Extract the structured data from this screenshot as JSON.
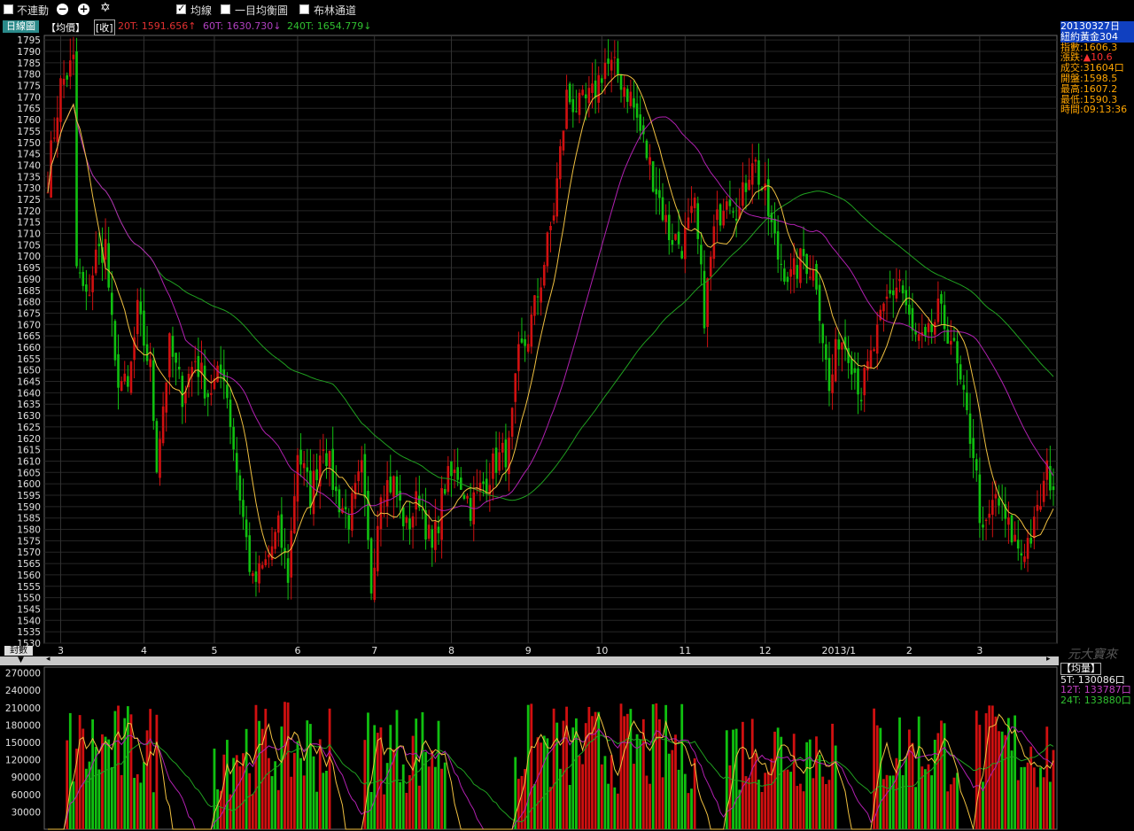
{
  "toolbar": {
    "unlink_label": "不連動",
    "ma_label": "均線",
    "ichimoku_label": "一目均衡圖",
    "bollinger_label": "布林通道",
    "ma_checked": true
  },
  "legend": {
    "tab_label": "日線圖",
    "price_label": "【均價】",
    "close_box": "[收]",
    "ma20": "20T: 1591.656↑",
    "ma60": "60T: 1630.730↓",
    "ma240": "240T: 1654.779↓"
  },
  "info_panel": {
    "date": "20130327日",
    "product": "紐約黃金304",
    "rows": [
      {
        "label": "指數",
        "value": ":1606.3"
      },
      {
        "label": "漲跌",
        "value": ":▲10.6"
      },
      {
        "label": "成交",
        "value": ":31604口"
      },
      {
        "label": "開盤",
        "value": ":1598.5"
      },
      {
        "label": "最高",
        "value": ":1607.2"
      },
      {
        "label": "最低",
        "value": ":1590.3"
      },
      {
        "label": "時間",
        "value": ":09:13:36"
      }
    ]
  },
  "volume_panel": {
    "title": "【均量】",
    "ma5": "5T: 130086口",
    "ma12": "12T: 133787口",
    "ma24": "24T: 133880口"
  },
  "bottom_left_label": "封數",
  "watermark": "元大寶來",
  "colors": {
    "up": "#d01010",
    "down": "#10c010",
    "ma20": "#f0c040",
    "ma60": "#b020b0",
    "ma240": "#20a020",
    "grid": "#3a3a3a",
    "axis_text": "#e0e0e0"
  },
  "chart_data": [
    {
      "type": "candlestick",
      "title": "",
      "ylim": [
        1530,
        1797
      ],
      "yticks": [
        1530,
        1535,
        1540,
        1545,
        1550,
        1555,
        1560,
        1565,
        1570,
        1575,
        1580,
        1585,
        1590,
        1595,
        1600,
        1605,
        1610,
        1615,
        1620,
        1625,
        1630,
        1635,
        1640,
        1645,
        1650,
        1655,
        1660,
        1665,
        1670,
        1675,
        1680,
        1685,
        1690,
        1695,
        1700,
        1705,
        1710,
        1715,
        1720,
        1725,
        1730,
        1735,
        1740,
        1745,
        1750,
        1755,
        1760,
        1765,
        1770,
        1775,
        1780,
        1785,
        1790,
        1795
      ],
      "x_tick_labels": [
        "3",
        "4",
        "5",
        "6",
        "7",
        "8",
        "9",
        "10",
        "11",
        "12",
        "2013/1",
        "2",
        "3"
      ],
      "x_tick_positions_bar_index": [
        4,
        30,
        52,
        78,
        102,
        126,
        150,
        173,
        199,
        224,
        247,
        269,
        291
      ],
      "bar_count": 315,
      "close_path_keypoints": [
        [
          0,
          1735
        ],
        [
          4,
          1775
        ],
        [
          8,
          1785
        ],
        [
          9,
          1695
        ],
        [
          12,
          1680
        ],
        [
          15,
          1700
        ],
        [
          18,
          1705
        ],
        [
          21,
          1650
        ],
        [
          25,
          1640
        ],
        [
          28,
          1675
        ],
        [
          32,
          1650
        ],
        [
          34,
          1610
        ],
        [
          38,
          1660
        ],
        [
          42,
          1640
        ],
        [
          46,
          1655
        ],
        [
          50,
          1640
        ],
        [
          55,
          1650
        ],
        [
          60,
          1595
        ],
        [
          64,
          1555
        ],
        [
          68,
          1565
        ],
        [
          72,
          1580
        ],
        [
          75,
          1560
        ],
        [
          78,
          1615
        ],
        [
          82,
          1595
        ],
        [
          86,
          1620
        ],
        [
          90,
          1595
        ],
        [
          94,
          1585
        ],
        [
          98,
          1605
        ],
        [
          101,
          1555
        ],
        [
          104,
          1600
        ],
        [
          108,
          1600
        ],
        [
          112,
          1580
        ],
        [
          116,
          1595
        ],
        [
          120,
          1570
        ],
        [
          124,
          1600
        ],
        [
          128,
          1605
        ],
        [
          132,
          1590
        ],
        [
          136,
          1600
        ],
        [
          140,
          1610
        ],
        [
          144,
          1615
        ],
        [
          147,
          1655
        ],
        [
          150,
          1665
        ],
        [
          154,
          1690
        ],
        [
          158,
          1720
        ],
        [
          162,
          1770
        ],
        [
          166,
          1765
        ],
        [
          170,
          1770
        ],
        [
          174,
          1785
        ],
        [
          178,
          1780
        ],
        [
          182,
          1770
        ],
        [
          186,
          1750
        ],
        [
          190,
          1730
        ],
        [
          194,
          1710
        ],
        [
          198,
          1705
        ],
        [
          202,
          1720
        ],
        [
          205,
          1675
        ],
        [
          208,
          1710
        ],
        [
          212,
          1730
        ],
        [
          216,
          1720
        ],
        [
          220,
          1745
        ],
        [
          224,
          1725
        ],
        [
          228,
          1700
        ],
        [
          232,
          1690
        ],
        [
          236,
          1700
        ],
        [
          240,
          1690
        ],
        [
          244,
          1640
        ],
        [
          247,
          1665
        ],
        [
          250,
          1660
        ],
        [
          254,
          1640
        ],
        [
          258,
          1660
        ],
        [
          262,
          1680
        ],
        [
          266,
          1690
        ],
        [
          270,
          1665
        ],
        [
          274,
          1660
        ],
        [
          278,
          1675
        ],
        [
          282,
          1665
        ],
        [
          286,
          1635
        ],
        [
          289,
          1615
        ],
        [
          292,
          1575
        ],
        [
          296,
          1595
        ],
        [
          300,
          1580
        ],
        [
          304,
          1570
        ],
        [
          308,
          1580
        ],
        [
          312,
          1605
        ],
        [
          314,
          1600
        ]
      ],
      "series": [
        {
          "name": "20T",
          "value": 1591.656
        },
        {
          "name": "60T",
          "value": 1630.73
        },
        {
          "name": "240T",
          "value": 1654.779
        }
      ]
    },
    {
      "type": "bar",
      "title": "",
      "ylim": [
        0,
        280000
      ],
      "yticks": [
        30000,
        60000,
        90000,
        120000,
        150000,
        180000,
        210000,
        240000,
        270000
      ],
      "session_clusters_bar_index": [
        [
          6,
          34
        ],
        [
          52,
          88
        ],
        [
          99,
          124
        ],
        [
          146,
          202
        ],
        [
          212,
          246
        ],
        [
          258,
          284
        ],
        [
          290,
          314
        ]
      ]
    }
  ]
}
